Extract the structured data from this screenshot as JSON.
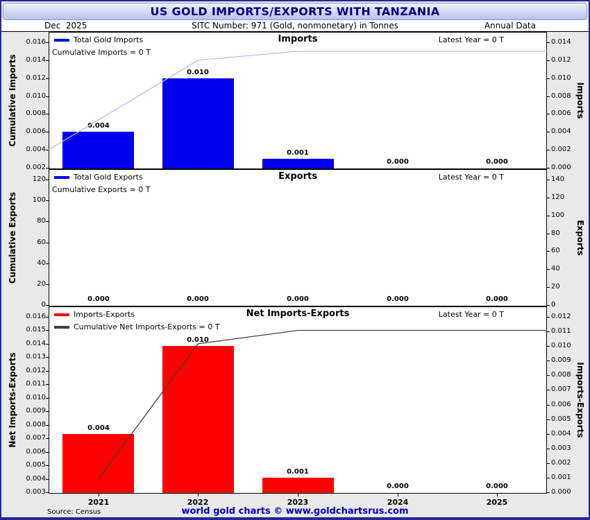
{
  "title": "US GOLD IMPORTS/EXPORTS WITH TANZANIA",
  "header": {
    "date": "Dec  2025",
    "sitc": "SITC Number: 971 (Gold, nonmonetary) in Tonnes",
    "frequency": "Annual Data"
  },
  "footer": {
    "source": "Source: Census",
    "credit": "world gold charts © www.goldchartsrus.com"
  },
  "years": [
    "2021",
    "2022",
    "2023",
    "2024",
    "2025"
  ],
  "colors": {
    "import_bar": "#0000ee",
    "net_bar": "#ff0000",
    "cumulative_line_light": "#b3bfe8",
    "cumulative_line_dark": "#404040",
    "title_text": "#000080",
    "credit_text": "#0000bb"
  },
  "chart_data": [
    {
      "type": "bar",
      "title": "Imports",
      "latest_note": "Latest Year = 0 T",
      "legend": [
        {
          "label": "Total Gold Imports",
          "swatch": "#0000ee"
        },
        {
          "label": "Cumulative Imports = 0 T",
          "swatch": null
        }
      ],
      "categories": [
        "2021",
        "2022",
        "2023",
        "2024",
        "2025"
      ],
      "bars": {
        "values": [
          0.004,
          0.01,
          0.001,
          0,
          0
        ],
        "labels": [
          "0.004",
          "0.010",
          "0.001",
          "0.000",
          "0.000"
        ],
        "color": "#0000ee"
      },
      "line": {
        "name": "Cumulative Imports",
        "values": [
          0.004,
          0.014,
          0.015,
          0.015,
          0.015
        ],
        "color": "#b3bfe8",
        "axis": "left",
        "start_at_edge": true
      },
      "left_axis": {
        "label": "Cumulative Imports",
        "min": 0.002,
        "max": 0.016,
        "ticks": [
          "0.002",
          "0.004",
          "0.006",
          "0.008",
          "0.010",
          "0.012",
          "0.014",
          "0.016"
        ]
      },
      "right_axis": {
        "label": "Imports",
        "min": 0,
        "max": 0.014,
        "ticks": [
          "0.000",
          "0.002",
          "0.004",
          "0.006",
          "0.008",
          "0.010",
          "0.012",
          "0.014"
        ]
      }
    },
    {
      "type": "bar",
      "title": "Exports",
      "latest_note": "Latest Year = 0 T",
      "legend": [
        {
          "label": "Total Gold Exports",
          "swatch": "#0000ee"
        },
        {
          "label": "Cumulative Exports = 0 T",
          "swatch": null
        }
      ],
      "categories": [
        "2021",
        "2022",
        "2023",
        "2024",
        "2025"
      ],
      "bars": {
        "values": [
          0,
          0,
          0,
          0,
          0
        ],
        "labels": [
          "0.000",
          "0.000",
          "0.000",
          "0.000",
          "0.000"
        ],
        "color": "#0000ee"
      },
      "line": null,
      "left_axis": {
        "label": "Cumulative Exports",
        "min": 0,
        "max": 120,
        "ticks": [
          "0",
          "20",
          "40",
          "60",
          "80",
          "100",
          "120"
        ]
      },
      "right_axis": {
        "label": "Exports",
        "min": 0,
        "max": 140,
        "ticks": [
          "0",
          "20",
          "40",
          "60",
          "80",
          "100",
          "120",
          "140"
        ]
      }
    },
    {
      "type": "bar",
      "title": "Net Imports-Exports",
      "latest_note": "Latest Year = 0 T",
      "legend": [
        {
          "label": "Imports-Exports",
          "swatch": "#ff0000"
        },
        {
          "label": "Cumulative Net Imports-Exports = 0 T",
          "swatch": "#404040"
        }
      ],
      "categories": [
        "2021",
        "2022",
        "2023",
        "2024",
        "2025"
      ],
      "bars": {
        "values": [
          0.004,
          0.01,
          0.001,
          0,
          0
        ],
        "labels": [
          "0.004",
          "0.010",
          "0.001",
          "0.000",
          "0.000"
        ],
        "color": "#ff0000"
      },
      "line": {
        "name": "Cumulative Net Imports-Exports",
        "values": [
          0.004,
          0.014,
          0.015,
          0.015,
          0.015
        ],
        "color": "#404040",
        "axis": "left",
        "start_at_edge": false
      },
      "left_axis": {
        "label": "Net Imports-Exports",
        "min": 0.003,
        "max": 0.016,
        "ticks": [
          "0.003",
          "0.004",
          "0.005",
          "0.006",
          "0.007",
          "0.008",
          "0.009",
          "0.010",
          "0.011",
          "0.012",
          "0.013",
          "0.014",
          "0.015",
          "0.016"
        ]
      },
      "right_axis": {
        "label": "Imports-Exports",
        "min": 0,
        "max": 0.012,
        "ticks": [
          "0.000",
          "0.001",
          "0.002",
          "0.003",
          "0.004",
          "0.005",
          "0.006",
          "0.007",
          "0.008",
          "0.009",
          "0.010",
          "0.011",
          "0.012"
        ]
      }
    }
  ]
}
